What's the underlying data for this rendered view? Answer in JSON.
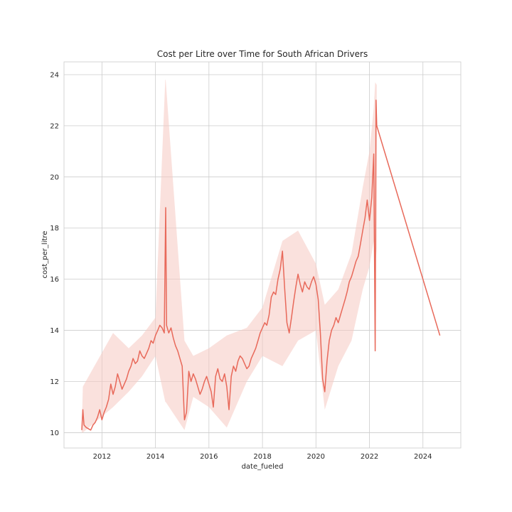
{
  "chart_data": {
    "type": "line",
    "title": "Cost per Litre over Time for South African Drivers",
    "xlabel": "date_fueled",
    "ylabel": "cost_per_litre",
    "xlim": [
      "2010-08-01",
      "2025-06-01"
    ],
    "ylim": [
      9.4,
      24.5
    ],
    "grid": true,
    "legend": "none",
    "line_color": "#e8695a",
    "band_color": "#f6c9c1",
    "x_ticks": [
      {
        "value": "2012-01-01",
        "label": "2012"
      },
      {
        "value": "2014-01-01",
        "label": "2014"
      },
      {
        "value": "2016-01-01",
        "label": "2016"
      },
      {
        "value": "2018-01-01",
        "label": "2018"
      },
      {
        "value": "2020-01-01",
        "label": "2020"
      },
      {
        "value": "2022-01-01",
        "label": "2022"
      },
      {
        "value": "2024-01-01",
        "label": "2024"
      }
    ],
    "y_ticks": [
      {
        "value": 10,
        "label": "10"
      },
      {
        "value": 12,
        "label": "12"
      },
      {
        "value": 14,
        "label": "14"
      },
      {
        "value": 16,
        "label": "16"
      },
      {
        "value": 18,
        "label": "18"
      },
      {
        "value": 20,
        "label": "20"
      },
      {
        "value": 22,
        "label": "22"
      },
      {
        "value": 24,
        "label": "24"
      }
    ],
    "series": [
      {
        "x": [
          "2011-04-01",
          "2011-04-15",
          "2011-05-01",
          "2011-06-01",
          "2011-08-01",
          "2011-09-01",
          "2011-10-01",
          "2011-11-01",
          "2011-12-01",
          "2012-01-01",
          "2012-02-01",
          "2012-03-01",
          "2012-04-01",
          "2012-05-01",
          "2012-06-01",
          "2012-07-01",
          "2012-08-01",
          "2012-09-01",
          "2012-10-01",
          "2012-11-01",
          "2012-12-01",
          "2013-01-01",
          "2013-02-01",
          "2013-03-01",
          "2013-04-01",
          "2013-05-01",
          "2013-06-01",
          "2013-07-01",
          "2013-08-01",
          "2013-09-01",
          "2013-10-01",
          "2013-11-01",
          "2013-12-01",
          "2014-01-01",
          "2014-02-01",
          "2014-03-01",
          "2014-04-01",
          "2014-05-01",
          "2014-05-20",
          "2014-06-01",
          "2014-07-01",
          "2014-08-01",
          "2014-09-01",
          "2014-10-01",
          "2014-11-01",
          "2014-12-01",
          "2015-01-01",
          "2015-02-01",
          "2015-03-01",
          "2015-04-01",
          "2015-05-01",
          "2015-06-01",
          "2015-07-01",
          "2015-08-01",
          "2015-09-01",
          "2015-10-01",
          "2015-11-01",
          "2015-12-01",
          "2016-01-01",
          "2016-02-01",
          "2016-03-01",
          "2016-04-01",
          "2016-05-01",
          "2016-06-01",
          "2016-07-01",
          "2016-08-01",
          "2016-09-01",
          "2016-10-01",
          "2016-11-01",
          "2016-12-01",
          "2017-01-01",
          "2017-02-01",
          "2017-03-01",
          "2017-04-01",
          "2017-05-01",
          "2017-06-01",
          "2017-07-01",
          "2017-08-01",
          "2017-09-01",
          "2017-10-01",
          "2017-11-01",
          "2017-12-01",
          "2018-01-01",
          "2018-02-01",
          "2018-03-01",
          "2018-04-01",
          "2018-05-01",
          "2018-06-01",
          "2018-07-01",
          "2018-08-01",
          "2018-09-01",
          "2018-10-01",
          "2018-11-01",
          "2018-12-01",
          "2019-01-01",
          "2019-02-01",
          "2019-03-01",
          "2019-04-01",
          "2019-05-01",
          "2019-06-01",
          "2019-07-01",
          "2019-08-01",
          "2019-09-01",
          "2019-10-01",
          "2019-11-01",
          "2019-12-01",
          "2020-01-01",
          "2020-02-01",
          "2020-03-01",
          "2020-04-01",
          "2020-05-01",
          "2020-06-01",
          "2020-07-01",
          "2020-08-01",
          "2020-09-01",
          "2020-10-01",
          "2020-11-01",
          "2020-12-01",
          "2021-01-01",
          "2021-02-01",
          "2021-03-01",
          "2021-04-01",
          "2021-05-01",
          "2021-06-01",
          "2021-07-01",
          "2021-08-01",
          "2021-09-01",
          "2021-10-01",
          "2021-11-01",
          "2021-12-01",
          "2022-01-01",
          "2022-02-01",
          "2022-03-01",
          "2022-03-20",
          "2022-04-01",
          "2022-04-10",
          "2024-08-20"
        ],
        "y": [
          10.1,
          10.9,
          10.3,
          10.2,
          10.1,
          10.3,
          10.4,
          10.6,
          10.9,
          10.5,
          10.8,
          11.0,
          11.3,
          11.9,
          11.5,
          11.8,
          12.3,
          12.0,
          11.7,
          11.9,
          12.1,
          12.4,
          12.6,
          12.9,
          12.7,
          12.8,
          13.2,
          13.0,
          12.9,
          13.1,
          13.3,
          13.6,
          13.5,
          13.8,
          14.0,
          14.2,
          14.1,
          13.9,
          18.8,
          14.2,
          13.9,
          14.1,
          13.7,
          13.4,
          13.2,
          12.9,
          12.6,
          10.5,
          10.8,
          12.4,
          12.0,
          12.3,
          12.1,
          11.8,
          11.5,
          11.7,
          12.0,
          12.2,
          11.9,
          11.6,
          11.0,
          12.2,
          12.5,
          12.1,
          12.0,
          12.3,
          11.8,
          10.9,
          12.2,
          12.6,
          12.4,
          12.8,
          13.0,
          12.9,
          12.7,
          12.5,
          12.6,
          12.9,
          13.1,
          13.3,
          13.6,
          13.9,
          14.1,
          14.3,
          14.2,
          14.6,
          15.3,
          15.5,
          15.4,
          16.0,
          16.4,
          17.1,
          15.6,
          14.3,
          13.9,
          14.5,
          15.1,
          15.7,
          16.2,
          15.8,
          15.5,
          15.9,
          15.7,
          15.6,
          15.9,
          16.1,
          15.8,
          15.2,
          13.9,
          12.1,
          11.6,
          12.8,
          13.6,
          14.0,
          14.2,
          14.5,
          14.3,
          14.6,
          14.9,
          15.2,
          15.5,
          15.9,
          16.1,
          16.4,
          16.7,
          16.9,
          17.4,
          17.9,
          18.4,
          19.1,
          18.3,
          19.2,
          20.9,
          13.2,
          23.0,
          22.0,
          13.8
        ]
      }
    ],
    "band": {
      "x": [
        "2011-04-01",
        "2011-04-15",
        "2012-06-01",
        "2013-01-01",
        "2013-07-01",
        "2014-01-01",
        "2014-05-15",
        "2014-05-20",
        "2015-02-01",
        "2015-06-01",
        "2016-01-01",
        "2016-09-01",
        "2017-06-01",
        "2018-01-01",
        "2018-10-01",
        "2019-05-01",
        "2020-01-01",
        "2020-05-01",
        "2020-11-01",
        "2021-05-01",
        "2021-10-01",
        "2022-01-01",
        "2022-03-01",
        "2022-03-20",
        "2022-04-10"
      ],
      "y_low": [
        10.0,
        10.0,
        11.0,
        11.6,
        12.2,
        13.0,
        11.2,
        11.2,
        10.1,
        11.4,
        11.0,
        10.2,
        12.0,
        13.0,
        12.6,
        13.6,
        14.0,
        10.9,
        12.6,
        13.6,
        15.6,
        16.5,
        17.5,
        16.5,
        17.2
      ],
      "y_high": [
        10.2,
        11.8,
        13.9,
        13.3,
        13.8,
        14.5,
        23.8,
        23.8,
        13.6,
        13.0,
        13.3,
        13.8,
        14.1,
        14.9,
        17.5,
        17.9,
        16.6,
        15.0,
        15.6,
        17.0,
        19.6,
        21.0,
        22.7,
        23.7,
        23.6
      ]
    }
  }
}
